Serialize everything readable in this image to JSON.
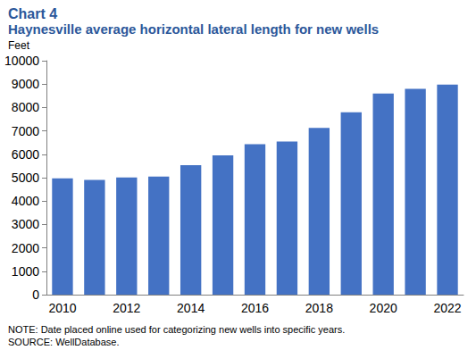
{
  "chart_data": {
    "type": "bar",
    "title": "Chart 4",
    "subtitle": "Haynesville average horizontal lateral length for new wells",
    "y_label": "Feet",
    "annotations": [
      "NOTE: Date placed online used for categorizing new wells into specific years.",
      "SOURCE: WellDatabase."
    ],
    "categories": [
      "2010",
      null,
      "2012",
      null,
      "2014",
      null,
      "2016",
      null,
      "2018",
      null,
      "2020",
      null,
      "2022"
    ],
    "values": [
      4970,
      4900,
      5010,
      5050,
      5530,
      5950,
      6430,
      6550,
      7130,
      7800,
      8600,
      8800,
      8980
    ],
    "color": "#4472c4",
    "ylim": [
      0,
      10000
    ],
    "yticks": [
      0,
      1000,
      2000,
      3000,
      4000,
      5000,
      6000,
      7000,
      8000,
      9000,
      10000
    ],
    "grid": false
  }
}
